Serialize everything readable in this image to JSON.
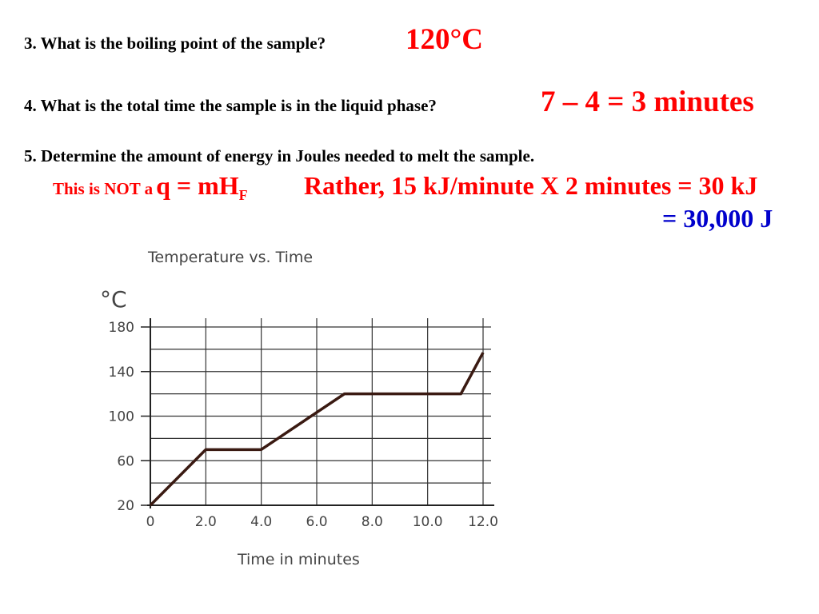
{
  "questions": {
    "q3": {
      "text": "3.  What is the boiling point of the sample?",
      "answer": "120°C"
    },
    "q4": {
      "text": "4.  What is the total time the sample is in the liquid phase?",
      "answer": "7 – 4 = 3 minutes"
    },
    "q5": {
      "text": "5.   Determine the amount of energy in Joules needed to melt the sample.",
      "note_prefix": "This is NOT a",
      "note_formula_main": "q = mH",
      "note_formula_sub": "F",
      "rather": "Rather, 15 kJ/minute X 2 minutes = 30 kJ",
      "joules": "= 30,000 J"
    }
  },
  "colors": {
    "answer": "#ff0000",
    "joules": "#0000cc",
    "line": "#3a1a12",
    "grid": "#333333"
  },
  "chart_data": {
    "type": "line",
    "title": "Temperature vs. Time",
    "xlabel": "Time in minutes",
    "ylabel": "°C",
    "xlim": [
      0,
      12
    ],
    "ylim": [
      20,
      180
    ],
    "x_ticks": [
      "0",
      "2.0",
      "4.0",
      "6.0",
      "8.0",
      "10.0",
      "12.0"
    ],
    "y_ticks": [
      "20",
      "60",
      "100",
      "140",
      "180"
    ],
    "grid": true,
    "series": [
      {
        "x": [
          0,
          2,
          4,
          7,
          11.2,
          12
        ],
        "y": [
          20,
          70,
          70,
          120,
          120,
          157
        ]
      }
    ]
  }
}
